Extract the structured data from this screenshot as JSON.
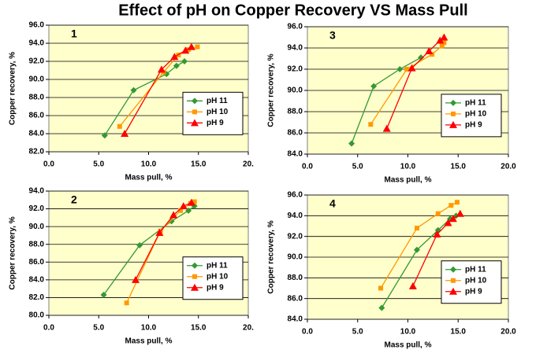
{
  "title": "Effect of pH on Copper Recovery VS Mass Pull",
  "chart_data": [
    {
      "type": "line",
      "label": "1",
      "xlabel": "Mass pull, %",
      "ylabel": "Copper recovery, %",
      "xlim": [
        0,
        20
      ],
      "ylim": [
        82,
        96
      ],
      "grid": true,
      "legend": "center-right",
      "xticks": [
        {
          "value": 0,
          "label": "0.0"
        },
        {
          "value": 5,
          "label": "5.0"
        },
        {
          "value": 10,
          "label": "10.0"
        },
        {
          "value": 15,
          "label": "15.0"
        },
        {
          "value": 20,
          "label": "20."
        }
      ],
      "yticks": [
        {
          "value": 82,
          "label": "82.0"
        },
        {
          "value": 84,
          "label": "84.0"
        },
        {
          "value": 86,
          "label": "86.0"
        },
        {
          "value": 88,
          "label": "88.0"
        },
        {
          "value": 90,
          "label": "90.0"
        },
        {
          "value": 92,
          "label": "92.0"
        },
        {
          "value": 94,
          "label": "94.0"
        },
        {
          "value": 96,
          "label": "96.0"
        }
      ],
      "series": [
        {
          "name": "pH 11",
          "color": "#339933",
          "marker": "diamond",
          "x": [
            5.6,
            8.5,
            11.8,
            12.8,
            13.6
          ],
          "values": [
            83.8,
            88.8,
            90.6,
            91.5,
            92.0
          ]
        },
        {
          "name": "pH 10",
          "color": "#ff9900",
          "marker": "square",
          "x": [
            7.1,
            11.5,
            13.0,
            14.0,
            14.9
          ],
          "values": [
            84.8,
            90.8,
            92.7,
            93.3,
            93.6
          ]
        },
        {
          "name": "pH 9",
          "color": "#ff0000",
          "marker": "triangle",
          "x": [
            7.6,
            11.3,
            12.6,
            13.7,
            14.3
          ],
          "values": [
            84.0,
            91.1,
            92.5,
            93.2,
            93.6
          ]
        }
      ]
    },
    {
      "type": "line",
      "label": "2",
      "xlabel": "Mass pull, %",
      "ylabel": "Copper recovery, %",
      "xlim": [
        0,
        20
      ],
      "ylim": [
        80,
        94
      ],
      "grid": true,
      "legend": "center-right",
      "xticks": [
        {
          "value": 0,
          "label": "0.0"
        },
        {
          "value": 5,
          "label": "5.0"
        },
        {
          "value": 10,
          "label": "10.0"
        },
        {
          "value": 15,
          "label": "15.0"
        },
        {
          "value": 20,
          "label": "20."
        }
      ],
      "yticks": [
        {
          "value": 80,
          "label": "80.0"
        },
        {
          "value": 82,
          "label": "82.0"
        },
        {
          "value": 84,
          "label": "84.0"
        },
        {
          "value": 86,
          "label": "86.0"
        },
        {
          "value": 88,
          "label": "88.0"
        },
        {
          "value": 90,
          "label": "90.0"
        },
        {
          "value": 92,
          "label": "92.0"
        },
        {
          "value": 94,
          "label": "94.0"
        }
      ],
      "series": [
        {
          "name": "pH 11",
          "color": "#339933",
          "marker": "diamond",
          "x": [
            5.5,
            9.1,
            12.3,
            14.0,
            14.6
          ],
          "values": [
            82.3,
            87.9,
            90.6,
            91.8,
            92.3
          ]
        },
        {
          "name": "pH 10",
          "color": "#ff9900",
          "marker": "square",
          "x": [
            7.8,
            11.2,
            13.2,
            14.2,
            14.6
          ],
          "values": [
            81.4,
            89.5,
            91.8,
            92.6,
            92.8
          ]
        },
        {
          "name": "pH 9",
          "color": "#ff0000",
          "marker": "triangle",
          "x": [
            8.7,
            11.1,
            12.5,
            13.5,
            14.3
          ],
          "values": [
            84.0,
            89.3,
            91.3,
            92.3,
            92.7
          ]
        }
      ]
    },
    {
      "type": "line",
      "label": "3",
      "xlabel": "Mass pull, %",
      "ylabel": "Copper recovery, %",
      "xlim": [
        0,
        20
      ],
      "ylim": [
        84,
        96
      ],
      "grid": true,
      "legend": "center-right",
      "xticks": [
        {
          "value": 0,
          "label": "0.0"
        },
        {
          "value": 5,
          "label": "5.0"
        },
        {
          "value": 10,
          "label": "10.0"
        },
        {
          "value": 15,
          "label": "15.0"
        },
        {
          "value": 20,
          "label": "20.0"
        }
      ],
      "yticks": [
        {
          "value": 84,
          "label": "84.0"
        },
        {
          "value": 86,
          "label": "86.0"
        },
        {
          "value": 88,
          "label": "88.0"
        },
        {
          "value": 90,
          "label": "90.0"
        },
        {
          "value": 92,
          "label": "92.0"
        },
        {
          "value": 94,
          "label": "94.0"
        },
        {
          "value": 96,
          "label": "96.0"
        }
      ],
      "series": [
        {
          "name": "pH 11",
          "color": "#339933",
          "marker": "diamond",
          "x": [
            4.4,
            6.6,
            9.2,
            11.3
          ],
          "values": [
            85.0,
            90.4,
            92.0,
            93.1
          ]
        },
        {
          "name": "pH 10",
          "color": "#ff9900",
          "marker": "square",
          "x": [
            6.3,
            9.9,
            12.4,
            13.4,
            13.6
          ],
          "values": [
            86.8,
            92.0,
            93.4,
            94.2,
            94.5
          ]
        },
        {
          "name": "pH 9",
          "color": "#ff0000",
          "marker": "triangle",
          "x": [
            7.9,
            10.4,
            12.1,
            13.2,
            13.6
          ],
          "values": [
            86.4,
            92.1,
            93.7,
            94.7,
            95.0
          ]
        }
      ]
    },
    {
      "type": "line",
      "label": "4",
      "xlabel": "Mass pull, %",
      "ylabel": "Copper recovery, %",
      "xlim": [
        0,
        20
      ],
      "ylim": [
        84,
        96
      ],
      "grid": true,
      "legend": "center-right",
      "xticks": [
        {
          "value": 0,
          "label": "0.0"
        },
        {
          "value": 5,
          "label": "5.0"
        },
        {
          "value": 10,
          "label": "10.0"
        },
        {
          "value": 15,
          "label": "15.0"
        },
        {
          "value": 20,
          "label": "20.0"
        }
      ],
      "yticks": [
        {
          "value": 84,
          "label": "84.0"
        },
        {
          "value": 86,
          "label": "86.0"
        },
        {
          "value": 88,
          "label": "88.0"
        },
        {
          "value": 90,
          "label": "90.0"
        },
        {
          "value": 92,
          "label": "92.0"
        },
        {
          "value": 94,
          "label": "94.0"
        },
        {
          "value": 96,
          "label": "96.0"
        }
      ],
      "series": [
        {
          "name": "pH 11",
          "color": "#339933",
          "marker": "diamond",
          "x": [
            7.4,
            10.9,
            13.0,
            14.2,
            14.8
          ],
          "values": [
            85.1,
            90.7,
            92.6,
            93.7,
            94.0
          ]
        },
        {
          "name": "pH 10",
          "color": "#ff9900",
          "marker": "square",
          "x": [
            7.3,
            10.9,
            13.0,
            14.3,
            14.9
          ],
          "values": [
            87.0,
            92.8,
            94.2,
            95.0,
            95.3
          ]
        },
        {
          "name": "pH 9",
          "color": "#ff0000",
          "marker": "triangle",
          "x": [
            10.5,
            12.9,
            14.0,
            14.5,
            15.2
          ],
          "values": [
            87.2,
            92.2,
            93.3,
            93.7,
            94.2
          ]
        }
      ]
    }
  ]
}
